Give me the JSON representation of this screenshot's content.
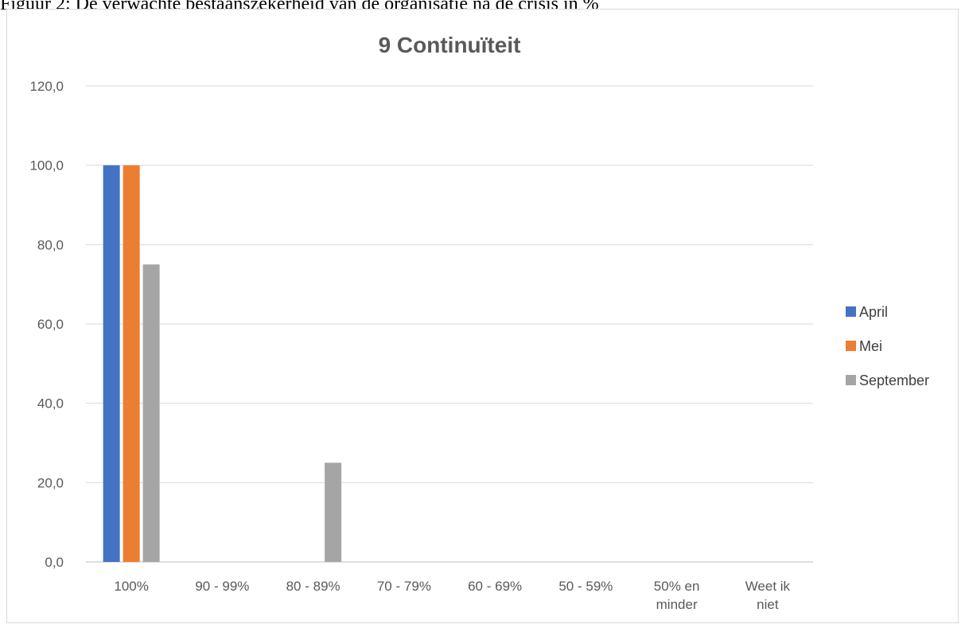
{
  "caption": "Figuur 2: De verwachte bestaanszekerheid van de organisatie na de crisis in %",
  "chart_data": {
    "type": "bar",
    "title": "9 Continuïteit",
    "categories": [
      [
        "100%"
      ],
      [
        "90 - 99%"
      ],
      [
        "80 - 89%"
      ],
      [
        "70 - 79%"
      ],
      [
        "60 - 69%"
      ],
      [
        "50 - 59%"
      ],
      [
        "50% en",
        "minder"
      ],
      [
        "Weet ik",
        "niet"
      ]
    ],
    "series": [
      {
        "name": "April",
        "color": "#4472c4",
        "values": [
          100,
          0,
          0,
          0,
          0,
          0,
          0,
          0
        ]
      },
      {
        "name": "Mei",
        "color": "#ed7d31",
        "values": [
          100,
          0,
          0,
          0,
          0,
          0,
          0,
          0
        ]
      },
      {
        "name": "September",
        "color": "#a5a5a5",
        "values": [
          75,
          0,
          25,
          0,
          0,
          0,
          0,
          0
        ]
      }
    ],
    "ylim": [
      0,
      120
    ],
    "yticks": [
      "0,0",
      "20,0",
      "40,0",
      "60,0",
      "80,0",
      "100,0",
      "120,0"
    ],
    "grid": true,
    "legend_position": "right"
  }
}
